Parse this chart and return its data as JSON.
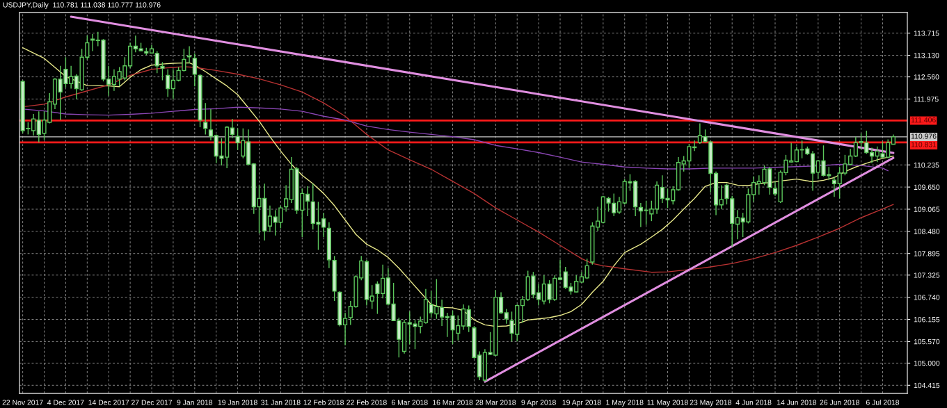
{
  "chart_data": {
    "type": "candlestick",
    "title": "USDJPY,Daily  110.781 111.038 110.777 110.976",
    "categories": [
      "22 Nov 2017",
      null,
      null,
      null,
      null,
      null,
      null,
      null,
      "4 Dec 2017",
      null,
      null,
      null,
      null,
      null,
      null,
      null,
      "14 Dec 2017",
      null,
      null,
      null,
      null,
      null,
      null,
      null,
      "27 Dec 2017",
      null,
      null,
      null,
      null,
      null,
      null,
      null,
      "9 Jan 2018",
      null,
      null,
      null,
      null,
      null,
      null,
      null,
      "19 Jan 2018",
      null,
      null,
      null,
      null,
      null,
      null,
      null,
      "31 Jan 2018",
      null,
      null,
      null,
      null,
      null,
      null,
      null,
      "12 Feb 2018",
      null,
      null,
      null,
      null,
      null,
      null,
      null,
      "22 Feb 2018",
      null,
      null,
      null,
      null,
      null,
      null,
      null,
      "6 Mar 2018",
      null,
      null,
      null,
      null,
      null,
      null,
      null,
      "16 Mar 2018",
      null,
      null,
      null,
      null,
      null,
      null,
      null,
      "28 Mar 2018",
      null,
      null,
      null,
      null,
      null,
      null,
      null,
      "9 Apr 2018",
      null,
      null,
      null,
      null,
      null,
      null,
      null,
      "19 Apr 2018",
      null,
      null,
      null,
      null,
      null,
      null,
      null,
      "1 May 2018",
      null,
      null,
      null,
      null,
      null,
      null,
      null,
      "11 May 2018",
      null,
      null,
      null,
      null,
      null,
      null,
      null,
      "23 May 2018",
      null,
      null,
      null,
      null,
      null,
      null,
      null,
      "4 Jun 2018",
      null,
      null,
      null,
      null,
      null,
      null,
      null,
      "14 Jun 2018",
      null,
      null,
      null,
      null,
      null,
      null,
      null,
      "26 Jun 2018",
      null,
      null,
      null,
      null,
      null,
      null,
      null,
      "6 Jul 2018",
      null,
      null
    ],
    "series": [
      {
        "type": "line",
        "color": "#e8e88a",
        "values": [
          113.33,
          null,
          null,
          null,
          113.05,
          null,
          null,
          null,
          112.57,
          null,
          null,
          null,
          112.33,
          null,
          null,
          null,
          112.32,
          null,
          112.3,
          null,
          112.55,
          null,
          112.75,
          null,
          112.87,
          null,
          112.9,
          null,
          112.92,
          null,
          null,
          112.93,
          112.87,
          null,
          112.7,
          null,
          112.51,
          null,
          112.32,
          null,
          112.09,
          null,
          111.74,
          null,
          111.39,
          null,
          110.98,
          null,
          110.6,
          null,
          110.25,
          null,
          109.96,
          null,
          109.74,
          null,
          109.48,
          null,
          109.16,
          null,
          108.78,
          null,
          108.4,
          null,
          108.14,
          null,
          107.99,
          null,
          107.79,
          null,
          107.51,
          null,
          107.19,
          null,
          106.87,
          null,
          106.55,
          null,
          106.47,
          null,
          106.46,
          null,
          106.39,
          null,
          106.14,
          null,
          106.01,
          null,
          105.97,
          null,
          105.98,
          null,
          106.04,
          null,
          106.14,
          null,
          106.17,
          null,
          106.2,
          null,
          106.26,
          null,
          106.36,
          null,
          106.55,
          null,
          106.87,
          null,
          107.16,
          null,
          107.57,
          null,
          107.92,
          null,
          null,
          108.14,
          null,
          108.33,
          null,
          108.53,
          null,
          108.78,
          null,
          109.07,
          null,
          109.35,
          null,
          109.67,
          null,
          109.77,
          null,
          109.77,
          null,
          109.7,
          null,
          109.69,
          null,
          109.74,
          null,
          109.77,
          null,
          109.81,
          null,
          null,
          109.86,
          null,
          null,
          109.79,
          null,
          109.83,
          null,
          109.9,
          null,
          110.06,
          null,
          110.18,
          null,
          110.28,
          null,
          110.37,
          null,
          110.44,
          110.47
        ]
      },
      {
        "type": "line",
        "color": "#b83232",
        "values": [
          111.77,
          null,
          null,
          null,
          111.84,
          null,
          null,
          null,
          112.03,
          null,
          null,
          null,
          112.19,
          null,
          null,
          null,
          112.35,
          null,
          null,
          null,
          112.6,
          null,
          null,
          null,
          112.76,
          null,
          112.79,
          null,
          112.81,
          null,
          112.83,
          null,
          112.81,
          null,
          null,
          null,
          112.73,
          null,
          null,
          null,
          112.63,
          null,
          null,
          null,
          112.51,
          null,
          null,
          null,
          112.35,
          null,
          null,
          null,
          112.16,
          null,
          null,
          null,
          111.87,
          null,
          null,
          null,
          111.52,
          null,
          null,
          null,
          111.04,
          null,
          null,
          null,
          110.63,
          null,
          null,
          null,
          110.37,
          null,
          null,
          null,
          110.12,
          null,
          null,
          null,
          109.8,
          null,
          null,
          null,
          109.48,
          null,
          null,
          null,
          109.1,
          null,
          null,
          null,
          108.78,
          null,
          null,
          null,
          108.46,
          null,
          null,
          null,
          108.11,
          null,
          null,
          null,
          107.76,
          null,
          107.63,
          null,
          107.57,
          null,
          null,
          null,
          107.49,
          null,
          null,
          null,
          null,
          107.4,
          null,
          null,
          107.41,
          null,
          null,
          null,
          107.47,
          null,
          null,
          null,
          107.54,
          null,
          null,
          null,
          107.63,
          null,
          null,
          null,
          107.76,
          null,
          null,
          null,
          107.92,
          null,
          null,
          null,
          108.11,
          null,
          null,
          null,
          108.33,
          null,
          null,
          null,
          108.56,
          null,
          null,
          null,
          108.84,
          null,
          null,
          null,
          109.07,
          null,
          109.19
        ]
      },
      {
        "type": "line",
        "color": "#8a46b4",
        "values": [
          111.71,
          null,
          null,
          null,
          111.66,
          null,
          null,
          null,
          111.58,
          null,
          null,
          null,
          111.56,
          null,
          null,
          null,
          111.55,
          null,
          null,
          null,
          111.57,
          null,
          null,
          null,
          111.6,
          null,
          null,
          null,
          111.65,
          null,
          null,
          null,
          111.7,
          null,
          null,
          null,
          111.72,
          null,
          null,
          null,
          111.76,
          null,
          null,
          null,
          111.74,
          null,
          null,
          null,
          111.71,
          null,
          null,
          null,
          111.65,
          null,
          null,
          null,
          111.52,
          null,
          null,
          null,
          111.42,
          null,
          null,
          null,
          111.26,
          null,
          null,
          null,
          111.17,
          null,
          null,
          null,
          111.1,
          null,
          null,
          null,
          111.04,
          null,
          null,
          null,
          110.98,
          null,
          null,
          null,
          110.9,
          null,
          null,
          null,
          110.75,
          null,
          null,
          null,
          110.66,
          null,
          null,
          null,
          110.56,
          null,
          null,
          null,
          110.44,
          null,
          null,
          null,
          110.31,
          null,
          null,
          null,
          110.25,
          null,
          null,
          null,
          110.18,
          null,
          null,
          null,
          110.15,
          null,
          null,
          null,
          110.13,
          null,
          null,
          null,
          110.13,
          null,
          null,
          null,
          110.15,
          null,
          null,
          null,
          110.15,
          null,
          null,
          null,
          110.15,
          null,
          null,
          null,
          110.17,
          null,
          null,
          null,
          110.19,
          null,
          null,
          null,
          110.21,
          null,
          null,
          null,
          110.25,
          null,
          null,
          null,
          110.22,
          null,
          null,
          null,
          110.15,
          110.08,
          null
        ]
      },
      {
        "type": "line",
        "color": "#e08ee0",
        "values": [
          null,
          null,
          null,
          null,
          null,
          null,
          null,
          null,
          null,
          114.15,
          null,
          null,
          null,
          null,
          null,
          null,
          null,
          null,
          null,
          null,
          null,
          null,
          null,
          null,
          null,
          null,
          null,
          null,
          null,
          null,
          null,
          null,
          null,
          null,
          null,
          null,
          null,
          null,
          null,
          null,
          null,
          null,
          null,
          null,
          null,
          null,
          null,
          null,
          null,
          null,
          null,
          null,
          null,
          null,
          null,
          null,
          null,
          null,
          null,
          null,
          null,
          null,
          null,
          null,
          null,
          null,
          null,
          null,
          null,
          null,
          null,
          null,
          null,
          null,
          null,
          null,
          null,
          null,
          null,
          null,
          null,
          null,
          null,
          null,
          null,
          null,
          null,
          null,
          null,
          null,
          null,
          null,
          null,
          null,
          null,
          null,
          null,
          null,
          null,
          null,
          null,
          null,
          null,
          null,
          null,
          null,
          null,
          null,
          null,
          null,
          null,
          null,
          null,
          null,
          null,
          null,
          null,
          null,
          null,
          null,
          null,
          null,
          null,
          null,
          null,
          null,
          null,
          null,
          null,
          null,
          null,
          null,
          null,
          null,
          null,
          null,
          null,
          null,
          null,
          null,
          null,
          null,
          null,
          null,
          null,
          null,
          null,
          null,
          null,
          null,
          null,
          null,
          null,
          null,
          null,
          null,
          null,
          null,
          null,
          null,
          null,
          null,
          110.55
        ]
      },
      {
        "type": "line",
        "color": "#e08ee0",
        "values": [
          null,
          null,
          null,
          null,
          null,
          null,
          null,
          null,
          null,
          null,
          null,
          null,
          null,
          null,
          null,
          null,
          null,
          null,
          null,
          null,
          null,
          null,
          null,
          null,
          null,
          null,
          null,
          null,
          null,
          null,
          null,
          null,
          null,
          null,
          null,
          null,
          null,
          null,
          null,
          null,
          null,
          null,
          null,
          null,
          null,
          null,
          null,
          null,
          null,
          null,
          null,
          null,
          null,
          null,
          null,
          null,
          null,
          null,
          null,
          null,
          null,
          null,
          null,
          null,
          null,
          null,
          null,
          null,
          null,
          null,
          null,
          null,
          null,
          null,
          null,
          null,
          null,
          null,
          null,
          null,
          null,
          null,
          null,
          null,
          null,
          null,
          104.51,
          null,
          null,
          null,
          null,
          null,
          null,
          null,
          null,
          null,
          null,
          null,
          null,
          null,
          null,
          null,
          null,
          null,
          null,
          null,
          null,
          null,
          null,
          null,
          null,
          null,
          null,
          null,
          null,
          null,
          null,
          null,
          null,
          null,
          null,
          null,
          null,
          null,
          null,
          null,
          null,
          null,
          null,
          null,
          null,
          null,
          null,
          null,
          null,
          null,
          null,
          null,
          null,
          null,
          null,
          null,
          null,
          null,
          null,
          null,
          null,
          null,
          null,
          null,
          null,
          null,
          null,
          null,
          null,
          null,
          null,
          null,
          null,
          null,
          null,
          null,
          110.42
        ]
      },
      {
        "color": "#5cc85c",
        "ohlc": [
          [
            112.44,
            112.47,
            111.07,
            111.14
          ],
          [
            111.19,
            111.36,
            111.04,
            111.2
          ],
          [
            111.14,
            111.58,
            111.01,
            111.45
          ],
          [
            111.42,
            111.65,
            110.83,
            111.04
          ],
          [
            111.07,
            111.65,
            110.9,
            111.42
          ],
          [
            111.36,
            112.13,
            111.33,
            111.9
          ],
          [
            111.84,
            112.53,
            111.71,
            112.5
          ],
          [
            112.5,
            112.85,
            111.42,
            112.16
          ],
          [
            112.76,
            113.08,
            112.28,
            112.38
          ],
          [
            112.38,
            112.85,
            112.25,
            112.57
          ],
          [
            112.58,
            112.63,
            111.97,
            112.25
          ],
          [
            112.22,
            113.3,
            112.19,
            113.08
          ],
          [
            113.08,
            113.65,
            113.02,
            113.46
          ],
          [
            113.56,
            113.69,
            113.24,
            113.53
          ],
          [
            113.52,
            113.75,
            113.37,
            113.53
          ],
          [
            113.53,
            113.56,
            112.44,
            112.5
          ],
          [
            112.5,
            112.85,
            112.06,
            112.36
          ],
          [
            112.36,
            112.76,
            112.19,
            112.57
          ],
          [
            112.5,
            112.82,
            112.31,
            112.7
          ],
          [
            112.53,
            113.08,
            112.47,
            112.85
          ],
          [
            112.85,
            113.46,
            112.79,
            113.37
          ],
          [
            113.37,
            113.65,
            113.21,
            113.3
          ],
          [
            113.3,
            113.46,
            113.24,
            113.25
          ],
          [
            113.23,
            113.33,
            113.14,
            113.19
          ],
          [
            113.19,
            113.4,
            113.18,
            113.3
          ],
          [
            113.18,
            113.24,
            112.66,
            112.85
          ],
          [
            112.84,
            112.95,
            112.47,
            112.79
          ],
          [
            112.6,
            112.76,
            112.03,
            112.25
          ],
          [
            112.25,
            112.76,
            111.97,
            112.47
          ],
          [
            112.47,
            112.82,
            112.44,
            112.73
          ],
          [
            112.73,
            113.3,
            112.7,
            113.02
          ],
          [
            113.09,
            113.37,
            112.92,
            113.11
          ],
          [
            113.05,
            113.18,
            112.31,
            112.63
          ],
          [
            112.6,
            112.63,
            111.23,
            111.42
          ],
          [
            111.36,
            111.87,
            111.04,
            111.2
          ],
          [
            111.16,
            111.71,
            110.88,
            110.99
          ],
          [
            111.01,
            111.04,
            110.28,
            110.47
          ],
          [
            110.47,
            110.94,
            110.22,
            110.41
          ],
          [
            110.44,
            111.26,
            110.15,
            111.23
          ],
          [
            111.21,
            111.45,
            110.94,
            111.04
          ],
          [
            110.99,
            111.2,
            110.63,
            110.82
          ],
          [
            110.47,
            111.2,
            110.41,
            110.88
          ],
          [
            110.84,
            111.17,
            110.22,
            110.25
          ],
          [
            110.26,
            110.28,
            108.94,
            109.13
          ],
          [
            109.13,
            109.7,
            108.43,
            109.35
          ],
          [
            109.35,
            109.74,
            108.24,
            108.49
          ],
          [
            108.62,
            109.16,
            108.46,
            108.88
          ],
          [
            108.86,
            109.04,
            108.37,
            108.72
          ],
          [
            108.72,
            109.16,
            108.56,
            109.1
          ],
          [
            109.13,
            109.7,
            109.0,
            109.34
          ],
          [
            109.32,
            110.44,
            109.23,
            110.12
          ],
          [
            110.13,
            110.18,
            108.94,
            109.04
          ],
          [
            109.04,
            109.61,
            108.33,
            109.48
          ],
          [
            109.46,
            109.67,
            108.88,
            109.28
          ],
          [
            109.26,
            109.74,
            108.53,
            108.69
          ],
          [
            108.72,
            109.26,
            107.99,
            108.67
          ],
          [
            108.81,
            108.97,
            108.33,
            108.59
          ],
          [
            108.56,
            108.72,
            107.51,
            107.73
          ],
          [
            107.71,
            107.83,
            106.64,
            106.9
          ],
          [
            106.87,
            106.9,
            105.97,
            106.01
          ],
          [
            106.01,
            106.33,
            105.47,
            106.18
          ],
          [
            106.2,
            106.64,
            106.01,
            106.5
          ],
          [
            106.49,
            107.32,
            106.46,
            107.28
          ],
          [
            107.25,
            107.83,
            107.19,
            107.7
          ],
          [
            107.68,
            107.73,
            106.52,
            106.68
          ],
          [
            106.64,
            107.06,
            106.43,
            106.77
          ],
          [
            107.09,
            107.16,
            106.3,
            106.84
          ],
          [
            106.84,
            107.6,
            106.71,
            107.24
          ],
          [
            107.25,
            107.51,
            106.52,
            106.56
          ],
          [
            106.56,
            107.12,
            106.11,
            106.12
          ],
          [
            106.12,
            106.2,
            105.15,
            105.63
          ],
          [
            105.31,
            106.14,
            105.25,
            106.07
          ],
          [
            106.07,
            106.36,
            105.5,
            106.03
          ],
          [
            106.03,
            106.14,
            105.37,
            105.97
          ],
          [
            105.97,
            106.23,
            105.79,
            106.11
          ],
          [
            106.07,
            106.96,
            106.04,
            106.68
          ],
          [
            106.55,
            106.9,
            106.2,
            106.33
          ],
          [
            106.3,
            107.22,
            106.17,
            106.49
          ],
          [
            106.47,
            106.68,
            105.98,
            106.22
          ],
          [
            106.23,
            106.33,
            105.69,
            106.2
          ],
          [
            106.25,
            106.39,
            105.5,
            105.88
          ],
          [
            105.79,
            106.26,
            105.6,
            105.99
          ],
          [
            105.98,
            106.55,
            105.88,
            106.43
          ],
          [
            106.41,
            106.52,
            105.82,
            105.97
          ],
          [
            105.93,
            105.98,
            105.12,
            105.15
          ],
          [
            105.21,
            105.31,
            104.55,
            104.64
          ],
          [
            104.55,
            105.37,
            104.51,
            105.28
          ],
          [
            105.28,
            105.82,
            105.21,
            105.23
          ],
          [
            105.21,
            106.93,
            105.2,
            106.74
          ],
          [
            106.74,
            106.87,
            106.3,
            106.33
          ],
          [
            106.33,
            106.43,
            106.04,
            106.17
          ],
          [
            106.12,
            106.36,
            105.57,
            105.79
          ],
          [
            105.76,
            106.55,
            105.57,
            106.52
          ],
          [
            106.52,
            106.77,
            106.07,
            106.68
          ],
          [
            106.68,
            107.44,
            106.64,
            107.28
          ],
          [
            107.3,
            107.41,
            106.71,
            106.81
          ],
          [
            106.86,
            107.09,
            106.52,
            106.68
          ],
          [
            106.64,
            107.32,
            106.55,
            107.09
          ],
          [
            107.09,
            107.19,
            106.58,
            106.68
          ],
          [
            106.68,
            107.32,
            106.64,
            107.24
          ],
          [
            107.25,
            107.73,
            107.19,
            107.21
          ],
          [
            107.41,
            107.54,
            106.96,
            107.0
          ],
          [
            107.01,
            107.12,
            106.81,
            106.9
          ],
          [
            106.88,
            107.32,
            106.87,
            107.16
          ],
          [
            107.14,
            107.41,
            107.12,
            107.28
          ],
          [
            107.25,
            107.76,
            107.22,
            107.57
          ],
          [
            107.67,
            108.72,
            107.6,
            108.62
          ],
          [
            108.59,
            109.13,
            108.49,
            108.75
          ],
          [
            108.72,
            109.42,
            108.69,
            109.39
          ],
          [
            109.35,
            109.39,
            109.0,
            109.23
          ],
          [
            109.22,
            109.48,
            108.88,
            108.97
          ],
          [
            108.99,
            109.39,
            108.94,
            109.26
          ],
          [
            109.23,
            109.86,
            109.19,
            109.8
          ],
          [
            109.79,
            109.99,
            109.55,
            109.76
          ],
          [
            109.8,
            109.83,
            108.88,
            109.13
          ],
          [
            109.11,
            109.23,
            108.59,
            109.02
          ],
          [
            109.04,
            109.29,
            108.65,
            109.03
          ],
          [
            108.94,
            109.29,
            108.75,
            109.07
          ],
          [
            109.07,
            109.8,
            108.94,
            109.7
          ],
          [
            109.64,
            109.96,
            109.23,
            109.35
          ],
          [
            109.35,
            109.61,
            109.1,
            109.31
          ],
          [
            109.29,
            109.67,
            109.19,
            109.58
          ],
          [
            109.58,
            110.44,
            109.55,
            110.3
          ],
          [
            110.26,
            110.47,
            110.06,
            110.34
          ],
          [
            110.34,
            110.79,
            110.15,
            110.72
          ],
          [
            110.69,
            110.88,
            110.6,
            110.71
          ],
          [
            110.83,
            111.33,
            110.79,
            111.01
          ],
          [
            110.98,
            111.17,
            110.83,
            110.85
          ],
          [
            110.84,
            110.87,
            109.51,
            110.01
          ],
          [
            110.01,
            110.06,
            108.91,
            109.18
          ],
          [
            109.18,
            109.7,
            109.07,
            109.32
          ],
          [
            109.7,
            109.74,
            109.19,
            109.35
          ],
          [
            109.34,
            109.42,
            108.08,
            108.69
          ],
          [
            108.67,
            109.04,
            108.27,
            108.84
          ],
          [
            108.83,
            108.97,
            108.33,
            108.73
          ],
          [
            108.73,
            109.61,
            108.69,
            109.45
          ],
          [
            109.45,
            109.93,
            109.26,
            109.77
          ],
          [
            109.74,
            109.96,
            109.45,
            109.8
          ],
          [
            109.77,
            110.22,
            109.7,
            110.12
          ],
          [
            110.13,
            110.18,
            109.45,
            109.64
          ],
          [
            109.61,
            109.8,
            109.42,
            109.47
          ],
          [
            109.26,
            110.09,
            109.23,
            110.04
          ],
          [
            110.03,
            110.5,
            109.96,
            110.36
          ],
          [
            110.31,
            110.82,
            110.3,
            110.34
          ],
          [
            110.32,
            110.72,
            110.31,
            110.63
          ],
          [
            110.63,
            110.88,
            110.41,
            110.64
          ],
          [
            110.66,
            110.72,
            110.5,
            110.53
          ],
          [
            110.53,
            110.6,
            109.55,
            110.02
          ],
          [
            110.04,
            110.37,
            109.86,
            110.34
          ],
          [
            110.34,
            110.75,
            109.93,
            109.96
          ],
          [
            109.98,
            110.18,
            109.83,
            109.95
          ],
          [
            109.83,
            109.93,
            109.39,
            109.74
          ],
          [
            109.74,
            110.18,
            109.35,
            110.02
          ],
          [
            110.02,
            110.5,
            109.96,
            110.26
          ],
          [
            110.25,
            110.66,
            110.22,
            110.47
          ],
          [
            110.47,
            110.98,
            110.44,
            110.82
          ],
          [
            110.82,
            111.07,
            110.63,
            110.85
          ],
          [
            110.82,
            111.14,
            110.53,
            110.56
          ],
          [
            110.56,
            110.69,
            110.28,
            110.47
          ],
          [
            110.47,
            110.72,
            110.31,
            110.6
          ],
          [
            110.53,
            110.85,
            110.41,
            110.44
          ],
          [
            110.44,
            110.91,
            110.41,
            110.82
          ],
          [
            110.781,
            111.038,
            110.777,
            110.976
          ]
        ]
      }
    ],
    "ylim": [
      104.2,
      114.26
    ],
    "yticks": [
      113.715,
      {
        "value": 113.13,
        "label": "113.130"
      },
      {
        "value": 112.56,
        "label": "112.560"
      },
      111.975,
      110.235,
      {
        "value": 109.65,
        "label": "109.650"
      },
      109.065,
      {
        "value": 108.48,
        "label": "108.480"
      },
      107.895,
      107.325,
      {
        "value": 106.74,
        "label": "106.740"
      },
      106.155,
      {
        "value": 105.57,
        "label": "105.570"
      },
      {
        "value": 105,
        "label": "105.000"
      },
      104.415
    ],
    "ref_lines": [
      {
        "axis": "y",
        "value": 111.406,
        "label": "111.406",
        "color": "#ff1a1a"
      },
      {
        "axis": "y",
        "value": 110.976,
        "label": "110.976",
        "color": "#c8c8c8"
      },
      {
        "axis": "y",
        "value": 110.831,
        "label": "110.831",
        "color": "#ff1a1a"
      }
    ],
    "grid": true
  }
}
